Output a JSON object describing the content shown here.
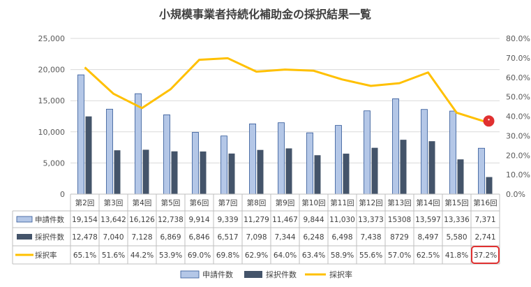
{
  "chart_data": {
    "type": "bar",
    "title": "小規模事業者持続化補助金の採択結果一覧",
    "categories": [
      "第2回",
      "第3回",
      "第4回",
      "第5回",
      "第6回",
      "第7回",
      "第8回",
      "第9回",
      "第10回",
      "第11回",
      "第12回",
      "第13回",
      "第14回",
      "第15回",
      "第16回"
    ],
    "series": [
      {
        "name": "申請件数",
        "type": "bar",
        "axis": "left",
        "color": "#B4C7E7",
        "values": [
          19154,
          13642,
          16126,
          12738,
          9914,
          9339,
          11279,
          11467,
          9844,
          11030,
          13373,
          15308,
          13597,
          13336,
          7371
        ],
        "labels": [
          "19,154",
          "13,642",
          "16,126",
          "12,738",
          "9,914",
          "9,339",
          "11,279",
          "11,467",
          "9,844",
          "11,030",
          "13,373",
          "15308",
          "13,597",
          "13,336",
          "7,371"
        ]
      },
      {
        "name": "採択件数",
        "type": "bar",
        "axis": "left",
        "color": "#44546A",
        "values": [
          12478,
          7040,
          7128,
          6869,
          6846,
          6517,
          7098,
          7344,
          6248,
          6498,
          7438,
          8729,
          8497,
          5580,
          2741
        ],
        "labels": [
          "12,478",
          "7,040",
          "7,128",
          "6,869",
          "6,846",
          "6,517",
          "7,098",
          "7,344",
          "6,248",
          "6,498",
          "7,438",
          "8729",
          "8,497",
          "5,580",
          "2,741"
        ]
      },
      {
        "name": "採択率",
        "type": "line",
        "axis": "right",
        "color": "#FFC000",
        "values": [
          65.1,
          51.6,
          44.2,
          53.9,
          69.0,
          69.8,
          62.9,
          64.0,
          63.4,
          58.9,
          55.6,
          57.0,
          62.5,
          41.8,
          37.2
        ],
        "labels": [
          "65.1%",
          "51.6%",
          "44.2%",
          "53.9%",
          "69.0%",
          "69.8%",
          "62.9%",
          "64.0%",
          "63.4%",
          "58.9%",
          "55.6%",
          "57.0%",
          "62.5%",
          "41.8%",
          "37.2%"
        ]
      }
    ],
    "ylim": [
      0,
      25000
    ],
    "yticks": [
      "25,000",
      "20,000",
      "15,000",
      "10,000",
      "5,000",
      "0"
    ],
    "y2lim": [
      0,
      80
    ],
    "y2ticks": [
      "80.0%",
      "70.0%",
      "60.0%",
      "50.0%",
      "40.0%",
      "30.0%",
      "20.0%",
      "10.0%",
      "0.0%"
    ],
    "legend_position": "bottom",
    "highlight": {
      "series": "採択率",
      "category": "第16回",
      "color": "#E03030"
    }
  }
}
